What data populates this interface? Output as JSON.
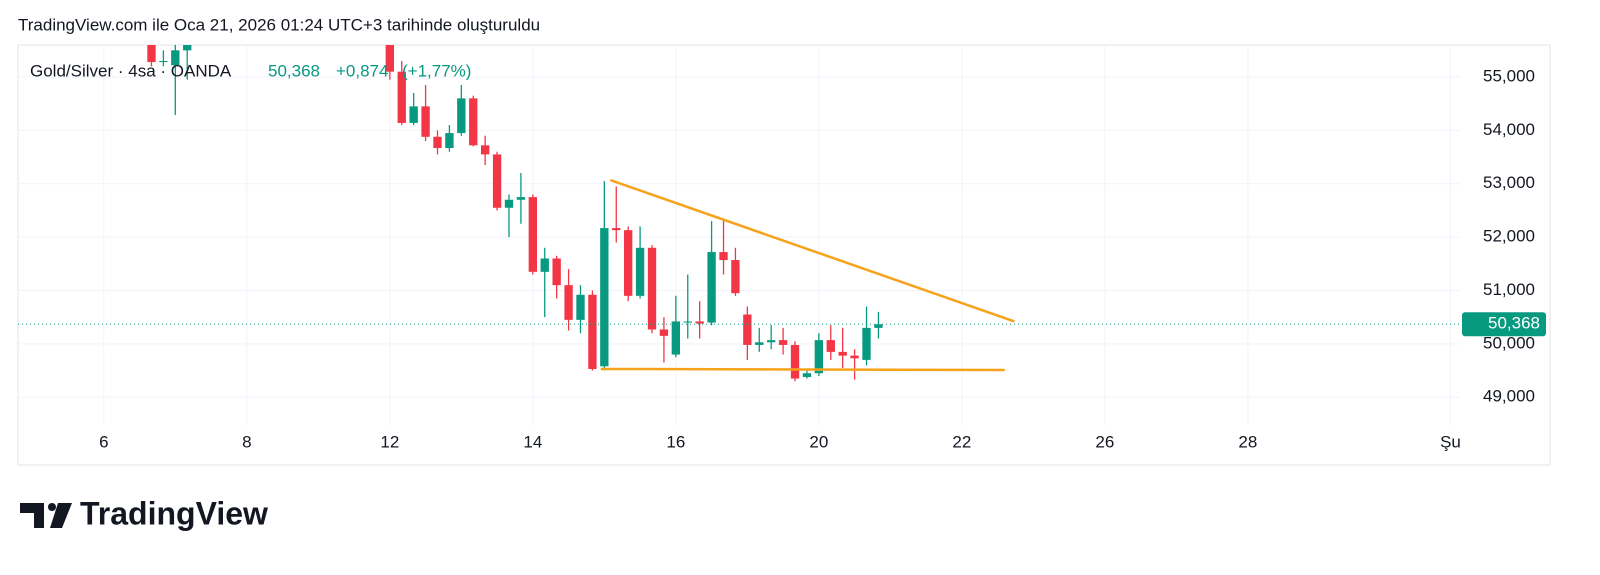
{
  "header": {
    "title": "TradingView.com ile Oca 21, 2026 01:24 UTC+3 tarihinde oluşturuldu"
  },
  "chart_data": {
    "type": "candlestick",
    "legend": {
      "symbol": "Gold/Silver · 4sa · OANDA",
      "change": "+0,874",
      "change_pct": "(+1,77%)"
    },
    "x": [
      4,
      5,
      6,
      7,
      24,
      25,
      26,
      27,
      28,
      29,
      30,
      31,
      32,
      33,
      34,
      35,
      36,
      37,
      38,
      39,
      40,
      41,
      42,
      43,
      44,
      45,
      46,
      47,
      48,
      49,
      50,
      51,
      52,
      53,
      54,
      55,
      56,
      57,
      58,
      59,
      60,
      61,
      62,
      63,
      64,
      65
    ],
    "open": [
      55.75,
      55.28,
      55.22,
      55.5,
      55.7,
      55.1,
      54.14,
      54.45,
      53.88,
      53.67,
      53.95,
      54.6,
      53.72,
      53.55,
      52.55,
      52.7,
      52.75,
      51.35,
      51.6,
      51.1,
      50.45,
      50.92,
      49.58,
      52.17,
      52.13,
      50.9,
      51.8,
      50.27,
      49.8,
      50.4,
      50.42,
      50.4,
      51.72,
      51.57,
      50.55,
      49.98,
      50.03,
      50.07,
      49.98,
      49.38,
      49.45,
      50.07,
      49.85,
      49.78,
      49.7,
      50.3
    ],
    "high": [
      55.9,
      55.5,
      55.7,
      55.8,
      55.9,
      55.3,
      54.7,
      54.85,
      54.0,
      54.1,
      54.85,
      54.65,
      53.9,
      53.6,
      52.8,
      53.2,
      52.8,
      51.8,
      51.65,
      51.4,
      51.1,
      51.0,
      53.05,
      52.95,
      52.2,
      52.2,
      51.85,
      50.5,
      50.9,
      51.3,
      50.8,
      52.3,
      52.35,
      51.8,
      50.7,
      50.3,
      50.35,
      50.3,
      50.05,
      49.5,
      50.2,
      50.35,
      50.3,
      49.9,
      50.7,
      50.6
    ],
    "low": [
      55.2,
      55.2,
      54.29,
      54.95,
      54.95,
      54.1,
      54.1,
      53.8,
      53.55,
      53.6,
      53.9,
      53.7,
      53.35,
      52.5,
      52.0,
      52.25,
      51.3,
      50.5,
      50.85,
      50.25,
      50.2,
      49.5,
      49.5,
      51.9,
      50.8,
      50.85,
      50.2,
      49.65,
      49.75,
      50.1,
      50.1,
      50.35,
      51.3,
      50.9,
      49.7,
      49.85,
      49.9,
      49.8,
      49.3,
      49.35,
      49.4,
      49.7,
      49.55,
      49.33,
      49.6,
      50.1
    ],
    "close": [
      55.28,
      55.3,
      55.5,
      55.65,
      55.1,
      54.14,
      54.45,
      53.88,
      53.67,
      53.95,
      54.6,
      53.72,
      53.55,
      52.55,
      52.7,
      52.75,
      51.35,
      51.6,
      51.1,
      50.45,
      50.92,
      49.53,
      52.17,
      52.13,
      50.9,
      51.8,
      50.27,
      50.15,
      50.42,
      50.42,
      50.38,
      51.72,
      51.57,
      50.95,
      49.98,
      50.03,
      50.07,
      49.98,
      49.35,
      49.45,
      50.07,
      49.85,
      49.78,
      49.73,
      50.3,
      50.368
    ],
    "up_color": "#089981",
    "down_color": "#f23645",
    "xlim": [
      -7.2,
      113.8
    ],
    "xticks": [
      {
        "value": 0,
        "label": "6"
      },
      {
        "value": 12,
        "label": "8"
      },
      {
        "value": 24,
        "label": "12"
      },
      {
        "value": 36,
        "label": "14"
      },
      {
        "value": 48,
        "label": "16"
      },
      {
        "value": 60,
        "label": "20"
      },
      {
        "value": 72,
        "label": "22"
      },
      {
        "value": 84,
        "label": "26"
      },
      {
        "value": 96,
        "label": "28"
      },
      {
        "value": 113,
        "label": "Şu"
      }
    ],
    "ylim": [
      48.48,
      55.6
    ],
    "yticks": [
      {
        "value": 49,
        "label": "49,000"
      },
      {
        "value": 50,
        "label": "50,000"
      },
      {
        "value": 51,
        "label": "51,000"
      },
      {
        "value": 52,
        "label": "52,000"
      },
      {
        "value": 53,
        "label": "53,000"
      },
      {
        "value": 54,
        "label": "54,000"
      },
      {
        "value": 55,
        "label": "55,000"
      }
    ],
    "grid": true,
    "last_price": {
      "value": 50.368,
      "label": "50,368"
    },
    "trendlines": [
      {
        "color": "#f7a21b",
        "x": [
          42.5,
          76.4
        ],
        "y": [
          53.07,
          50.42
        ]
      },
      {
        "color": "#f7a21b",
        "x": [
          41.7,
          75.6
        ],
        "y": [
          49.53,
          49.51
        ]
      }
    ]
  },
  "footer": {
    "brand": "TradingView"
  }
}
